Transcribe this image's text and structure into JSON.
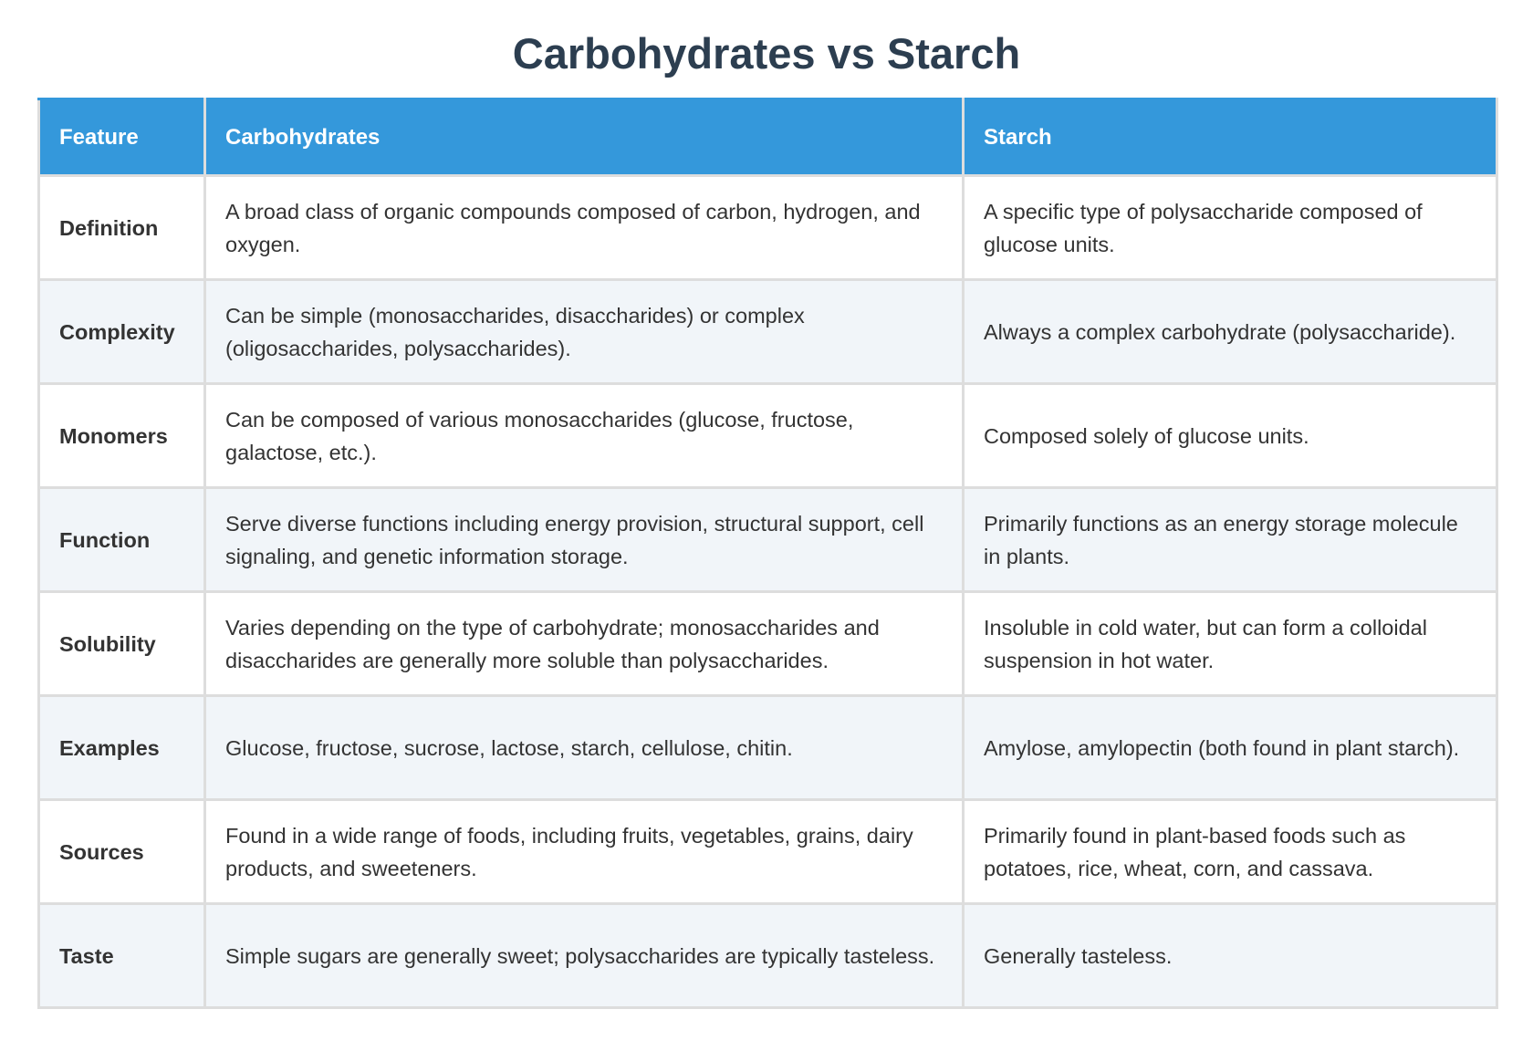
{
  "title": "Carbohydrates vs Starch",
  "table": {
    "header": [
      "Feature",
      "Carbohydrates",
      "Starch"
    ],
    "rows": [
      [
        "Definition",
        "A broad class of organic compounds composed of carbon, hydrogen, and oxygen.",
        "A specific type of polysaccharide composed of glucose units."
      ],
      [
        "Complexity",
        "Can be simple (monosaccharides, disaccharides) or complex (oligosaccharides, polysaccharides).",
        "Always a complex carbohydrate (polysaccharide)."
      ],
      [
        "Monomers",
        "Can be composed of various monosaccharides (glucose, fructose, galactose, etc.).",
        "Composed solely of glucose units."
      ],
      [
        "Function",
        "Serve diverse functions including energy provision, structural support, cell signaling, and genetic information storage.",
        "Primarily functions as an energy storage molecule in plants."
      ],
      [
        "Solubility",
        "Varies depending on the type of carbohydrate; monosaccharides and disaccharides are generally more soluble than polysaccharides.",
        "Insoluble in cold water, but can form a colloidal suspension in hot water."
      ],
      [
        "Examples",
        "Glucose, fructose, sucrose, lactose, starch, cellulose, chitin.",
        "Amylose, amylopectin (both found in plant starch)."
      ],
      [
        "Sources",
        "Found in a wide range of foods, including fruits, vegetables, grains, dairy products, and sweeteners.",
        "Primarily found in plant-based foods such as potatoes, rice, wheat, corn, and cassava."
      ],
      [
        "Taste",
        "Simple sugars are generally sweet; polysaccharides are typically tasteless.",
        "Generally tasteless."
      ]
    ]
  }
}
